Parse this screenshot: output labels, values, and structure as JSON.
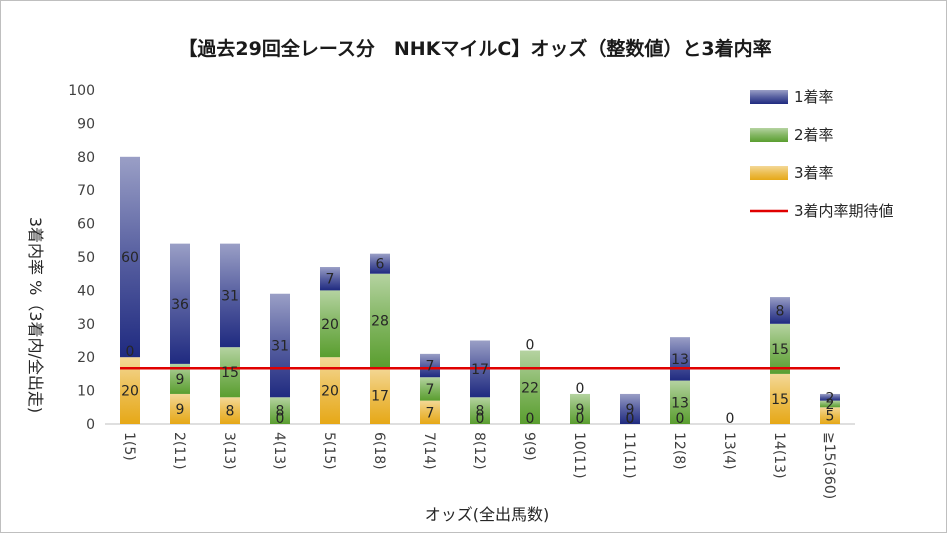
{
  "chart_data": {
    "type": "bar",
    "stacked": true,
    "title": "【過去29回全レース分　NHKマイルC】オッズ（整数値）と3着内率",
    "xlabel": "オッズ(全出馬数)",
    "ylabel": "3着内率 %（3着内/全出走)",
    "ylim": [
      0,
      100
    ],
    "yticks": [
      0,
      10,
      20,
      30,
      40,
      50,
      60,
      70,
      80,
      90,
      100
    ],
    "categories": [
      "1(5)",
      "2(11)",
      "3(13)",
      "4(13)",
      "5(15)",
      "6(18)",
      "7(14)",
      "8(12)",
      "9(9)",
      "10(11)",
      "11(11)",
      "12(8)",
      "13(4)",
      "14(13)",
      "≧15(360)"
    ],
    "series": [
      {
        "name": "3着率",
        "color": "#e6a817",
        "values": [
          20,
          9,
          8,
          0,
          20,
          17,
          7,
          0,
          0,
          0,
          0,
          0,
          0,
          15,
          5
        ],
        "labels": [
          "20",
          "9",
          "8",
          "0",
          "20",
          "17",
          "7",
          "0",
          "0",
          "0",
          "0",
          "0",
          "0",
          "15",
          "5"
        ]
      },
      {
        "name": "2着率",
        "color": "#5a9e2f",
        "values": [
          0,
          9,
          15,
          8,
          20,
          28,
          7,
          8,
          22,
          9,
          0,
          13,
          0,
          15,
          2
        ],
        "labels": [
          "0",
          "9",
          "15",
          "8",
          "20",
          "28",
          "7",
          "8",
          "22",
          "9",
          "0",
          "13",
          "",
          "15",
          "2"
        ]
      },
      {
        "name": "1着率",
        "color": "#1f2a80",
        "values": [
          60,
          36,
          31,
          31,
          7,
          6,
          7,
          17,
          0,
          0,
          9,
          13,
          0,
          8,
          2
        ],
        "labels": [
          "60",
          "36",
          "31",
          "31",
          "7",
          "6",
          "7",
          "17",
          "0",
          "0",
          "9",
          "13",
          "",
          "8",
          "2"
        ]
      }
    ],
    "reference_line": {
      "name": "3着内率期待値",
      "value": 16.7,
      "color": "#e00000"
    },
    "legend_position": "top-right",
    "grid": false
  }
}
